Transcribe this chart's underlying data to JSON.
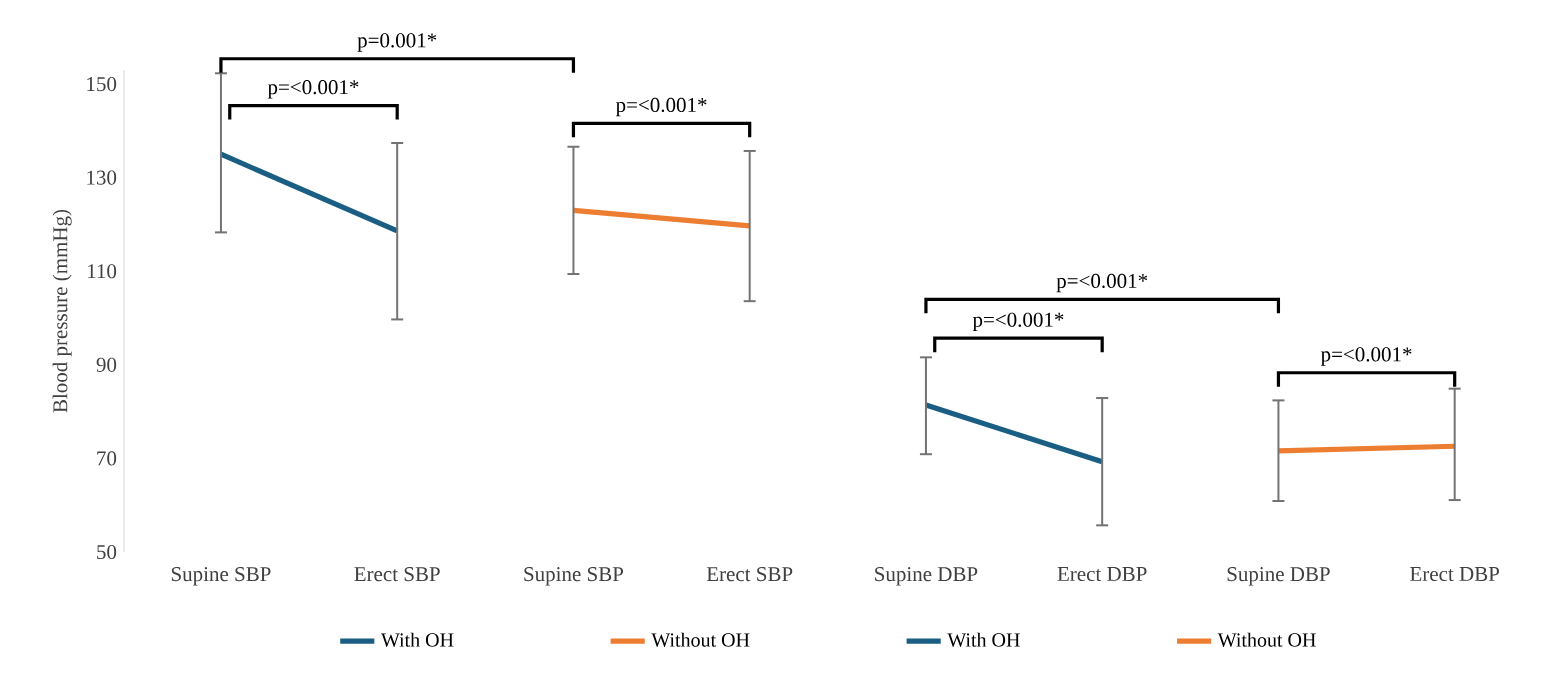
{
  "chart_data": {
    "type": "line",
    "ylabel": "Blood pressure (mmHg)",
    "categories": [
      "Supine SBP",
      "Erect SBP",
      "Supine SBP",
      "Erect SBP",
      "Supine DBP",
      "Erect DBP",
      "Supine DBP",
      "Erect DBP"
    ],
    "series": [
      {
        "name": "With OH",
        "color": "#1b5e84",
        "values": [
          135,
          118.6,
          null,
          null,
          null,
          null,
          null,
          null
        ],
        "errors": [
          [
            118.3,
            152.3
          ],
          [
            99.7,
            137.4
          ],
          null,
          null,
          null,
          null,
          null,
          null
        ]
      },
      {
        "name": "Without OH",
        "color": "#ed7d31",
        "values": [
          null,
          null,
          123,
          119.7,
          null,
          null,
          null,
          null
        ],
        "errors": [
          null,
          null,
          [
            109.4,
            136.6
          ],
          [
            103.6,
            135.7
          ],
          null,
          null,
          null,
          null
        ]
      },
      {
        "name": "With OH",
        "color": "#1b5e84",
        "values": [
          null,
          null,
          null,
          null,
          81.4,
          69.3,
          null,
          null
        ],
        "errors": [
          null,
          null,
          null,
          null,
          [
            70.9,
            91.6
          ],
          [
            55.7,
            82.9
          ],
          null,
          null
        ]
      },
      {
        "name": "Without OH",
        "color": "#ed7d31",
        "values": [
          null,
          null,
          null,
          null,
          null,
          null,
          71.6,
          72.6
        ],
        "errors": [
          null,
          null,
          null,
          null,
          null,
          null,
          [
            60.9,
            82.4
          ],
          [
            61.1,
            84.9
          ]
        ]
      }
    ],
    "ylim": [
      50,
      153
    ],
    "yticks": [
      50,
      70,
      90,
      110,
      130,
      150
    ],
    "grid": false,
    "legend": "bottom",
    "marker": "none",
    "line_style": "solid",
    "annotations": [
      "p=0.001*",
      "p=<0.001*",
      "p=<0.001*",
      "p=<0.001*",
      "p=<0.001*",
      "p=<0.001*"
    ]
  }
}
